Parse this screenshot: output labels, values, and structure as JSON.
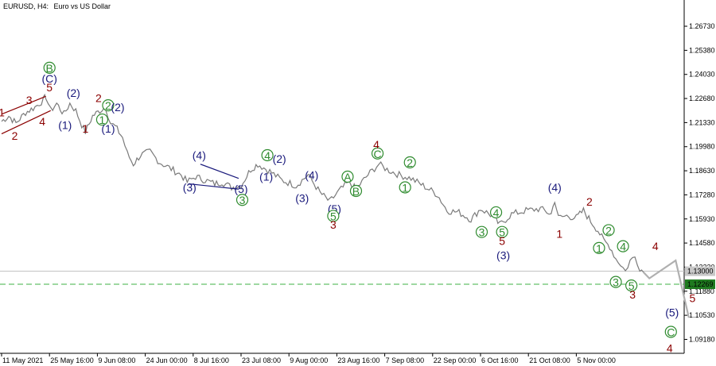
{
  "header": {
    "symbol": "EURUSD, H4:",
    "description": "Euro vs US Dollar"
  },
  "colors": {
    "price": "#7a7a7a",
    "navy": "#1a1a7c",
    "darkred": "#8b0000",
    "green": "#2e8b2e",
    "forecast": "#b0b0b0",
    "dashed": "#3cb043",
    "badge_green": "#1f7a1f",
    "badge_grey": "#c8c8c8"
  },
  "chart_data": {
    "type": "line",
    "symbol": "EURUSD",
    "timeframe": "H4",
    "ylim": [
      1.084,
      1.282
    ],
    "y_ticks": [
      "1.26730",
      "1.25380",
      "1.24030",
      "1.22680",
      "1.21330",
      "1.19980",
      "1.18630",
      "1.17280",
      "1.15930",
      "1.14580",
      "1.13230",
      "1.11880",
      "1.10530",
      "1.09180"
    ],
    "x_ticks": [
      "11 May 2021",
      "25 May 16:00",
      "9 Jun 08:00",
      "24 Jun 00:00",
      "8 Jul 16:00",
      "23 Jul 08:00",
      "9 Aug 00:00",
      "23 Aug 16:00",
      "7 Sep 08:00",
      "22 Sep 00:00",
      "6 Oct 16:00",
      "21 Oct 08:00",
      "5 Nov 00:00"
    ],
    "x_tick_index": [
      0,
      2,
      4,
      6,
      8,
      10,
      12,
      14,
      16,
      18,
      20,
      22,
      24
    ],
    "series": [
      {
        "values": [
          [
            0,
            1.214
          ],
          [
            0.3,
            1.217
          ],
          [
            0.6,
            1.213
          ],
          [
            1.0,
            1.219
          ],
          [
            1.4,
            1.222
          ],
          [
            1.75,
            1.226
          ],
          [
            1.85,
            1.228
          ],
          [
            2.05,
            1.22
          ],
          [
            2.3,
            1.224
          ],
          [
            2.6,
            1.218
          ],
          [
            2.85,
            1.224
          ],
          [
            3.1,
            1.22
          ],
          [
            3.35,
            1.212
          ],
          [
            3.5,
            1.208
          ],
          [
            3.8,
            1.217
          ],
          [
            4.1,
            1.22
          ],
          [
            4.35,
            1.222
          ],
          [
            4.55,
            1.213
          ],
          [
            4.75,
            1.211
          ],
          [
            5.05,
            1.205
          ],
          [
            5.25,
            1.196
          ],
          [
            5.5,
            1.19
          ],
          [
            5.8,
            1.195
          ],
          [
            6.2,
            1.197
          ],
          [
            6.6,
            1.191
          ],
          [
            7.0,
            1.188
          ],
          [
            7.5,
            1.184
          ],
          [
            7.75,
            1.18
          ],
          [
            8.1,
            1.183
          ],
          [
            8.5,
            1.181
          ],
          [
            8.9,
            1.179
          ],
          [
            9.2,
            1.18
          ],
          [
            9.6,
            1.177
          ],
          [
            10.0,
            1.178
          ],
          [
            10.4,
            1.187
          ],
          [
            10.7,
            1.19
          ],
          [
            11.2,
            1.186
          ],
          [
            11.7,
            1.181
          ],
          [
            12.3,
            1.178
          ],
          [
            12.8,
            1.184
          ],
          [
            13.3,
            1.174
          ],
          [
            13.7,
            1.169
          ],
          [
            14.1,
            1.175
          ],
          [
            14.5,
            1.18
          ],
          [
            14.8,
            1.176
          ],
          [
            15.3,
            1.184
          ],
          [
            15.75,
            1.19
          ],
          [
            16.1,
            1.187
          ],
          [
            16.6,
            1.184
          ],
          [
            17.1,
            1.182
          ],
          [
            17.6,
            1.178
          ],
          [
            18.2,
            1.173
          ],
          [
            18.6,
            1.164
          ],
          [
            19.1,
            1.163
          ],
          [
            19.6,
            1.159
          ],
          [
            20.0,
            1.165
          ],
          [
            20.5,
            1.161
          ],
          [
            20.8,
            1.156
          ],
          [
            21.3,
            1.162
          ],
          [
            21.9,
            1.164
          ],
          [
            22.5,
            1.165
          ],
          [
            22.95,
            1.162
          ],
          [
            23.1,
            1.17
          ],
          [
            23.25,
            1.16
          ],
          [
            23.6,
            1.161
          ],
          [
            24.0,
            1.16
          ],
          [
            24.3,
            1.164
          ],
          [
            24.6,
            1.158
          ],
          [
            24.9,
            1.153
          ],
          [
            25.15,
            1.147
          ],
          [
            25.4,
            1.144
          ],
          [
            25.65,
            1.137
          ],
          [
            25.85,
            1.134
          ],
          [
            26.05,
            1.13
          ],
          [
            26.25,
            1.136
          ],
          [
            26.45,
            1.138
          ],
          [
            26.65,
            1.132
          ],
          [
            26.8,
            1.1295
          ]
        ]
      }
    ],
    "forecast": [
      [
        26.8,
        1.1295
      ],
      [
        27.05,
        1.126
      ],
      [
        28.15,
        1.136
      ],
      [
        28.7,
        1.104
      ]
    ],
    "horizontal_lines": [
      {
        "value": 1.13,
        "label": "1.13000",
        "style": "solid"
      },
      {
        "value": 1.12269,
        "label": "1.12269",
        "style": "dashed"
      }
    ],
    "wave_labels": [
      {
        "text": "1",
        "x": 0.0,
        "y": 1.219,
        "color": "darkred",
        "circle": false
      },
      {
        "text": "2",
        "x": 0.55,
        "y": 1.206,
        "color": "darkred",
        "circle": false
      },
      {
        "text": "3",
        "x": 1.15,
        "y": 1.226,
        "color": "darkred",
        "circle": false
      },
      {
        "text": "4",
        "x": 1.7,
        "y": 1.214,
        "color": "darkred",
        "circle": false
      },
      {
        "text": "5",
        "x": 2.0,
        "y": 1.233,
        "color": "darkred",
        "circle": false
      },
      {
        "text": "(C)",
        "x": 2.0,
        "y": 1.238,
        "color": "navy",
        "circle": false
      },
      {
        "text": "B",
        "x": 2.0,
        "y": 1.244,
        "color": "green",
        "circle": true
      },
      {
        "text": "(1)",
        "x": 2.65,
        "y": 1.212,
        "color": "navy",
        "circle": false
      },
      {
        "text": "(2)",
        "x": 3.0,
        "y": 1.23,
        "color": "navy",
        "circle": false
      },
      {
        "text": "1",
        "x": 3.5,
        "y": 1.21,
        "color": "darkred",
        "circle": false
      },
      {
        "text": "2",
        "x": 4.05,
        "y": 1.227,
        "color": "darkred",
        "circle": false
      },
      {
        "text": "1",
        "x": 4.2,
        "y": 1.215,
        "color": "green",
        "circle": true
      },
      {
        "text": "2",
        "x": 4.45,
        "y": 1.223,
        "color": "green",
        "circle": true
      },
      {
        "text": "(2)",
        "x": 4.85,
        "y": 1.222,
        "color": "navy",
        "circle": false
      },
      {
        "text": "(1)",
        "x": 4.45,
        "y": 1.21,
        "color": "navy",
        "circle": false
      },
      {
        "text": "(3)",
        "x": 7.85,
        "y": 1.177,
        "color": "navy",
        "circle": false
      },
      {
        "text": "(4)",
        "x": 8.25,
        "y": 1.195,
        "color": "navy",
        "circle": false
      },
      {
        "text": "(5)",
        "x": 10.0,
        "y": 1.176,
        "color": "navy",
        "circle": false
      },
      {
        "text": "3",
        "x": 10.05,
        "y": 1.17,
        "color": "green",
        "circle": true
      },
      {
        "text": "(1)",
        "x": 11.05,
        "y": 1.183,
        "color": "navy",
        "circle": false
      },
      {
        "text": "4",
        "x": 11.1,
        "y": 1.195,
        "color": "green",
        "circle": true
      },
      {
        "text": "(2)",
        "x": 11.6,
        "y": 1.193,
        "color": "navy",
        "circle": false
      },
      {
        "text": "(3)",
        "x": 12.55,
        "y": 1.171,
        "color": "navy",
        "circle": false
      },
      {
        "text": "(4)",
        "x": 12.95,
        "y": 1.184,
        "color": "navy",
        "circle": false
      },
      {
        "text": "(5)",
        "x": 13.9,
        "y": 1.165,
        "color": "navy",
        "circle": false
      },
      {
        "text": "5",
        "x": 13.85,
        "y": 1.161,
        "color": "green",
        "circle": true
      },
      {
        "text": "3",
        "x": 13.85,
        "y": 1.156,
        "color": "darkred",
        "circle": false
      },
      {
        "text": "A",
        "x": 14.45,
        "y": 1.183,
        "color": "green",
        "circle": true
      },
      {
        "text": "B",
        "x": 14.8,
        "y": 1.175,
        "color": "green",
        "circle": true
      },
      {
        "text": "C",
        "x": 15.7,
        "y": 1.196,
        "color": "green",
        "circle": true
      },
      {
        "text": "4",
        "x": 15.65,
        "y": 1.201,
        "color": "darkred",
        "circle": false
      },
      {
        "text": "1",
        "x": 16.85,
        "y": 1.177,
        "color": "green",
        "circle": true
      },
      {
        "text": "2",
        "x": 17.05,
        "y": 1.191,
        "color": "green",
        "circle": true
      },
      {
        "text": "3",
        "x": 20.05,
        "y": 1.152,
        "color": "green",
        "circle": true
      },
      {
        "text": "4",
        "x": 20.65,
        "y": 1.163,
        "color": "green",
        "circle": true
      },
      {
        "text": "5",
        "x": 20.9,
        "y": 1.152,
        "color": "green",
        "circle": true
      },
      {
        "text": "5",
        "x": 20.9,
        "y": 1.147,
        "color": "darkred",
        "circle": false
      },
      {
        "text": "(3)",
        "x": 20.95,
        "y": 1.139,
        "color": "navy",
        "circle": false
      },
      {
        "text": "(4)",
        "x": 23.1,
        "y": 1.177,
        "color": "navy",
        "circle": false
      },
      {
        "text": "1",
        "x": 23.3,
        "y": 1.151,
        "color": "darkred",
        "circle": false
      },
      {
        "text": "2",
        "x": 24.55,
        "y": 1.169,
        "color": "darkred",
        "circle": false
      },
      {
        "text": "1",
        "x": 24.95,
        "y": 1.143,
        "color": "green",
        "circle": true
      },
      {
        "text": "2",
        "x": 25.35,
        "y": 1.153,
        "color": "green",
        "circle": true
      },
      {
        "text": "4",
        "x": 25.95,
        "y": 1.144,
        "color": "green",
        "circle": true
      },
      {
        "text": "3",
        "x": 25.65,
        "y": 1.124,
        "color": "green",
        "circle": true
      },
      {
        "text": "5",
        "x": 26.3,
        "y": 1.122,
        "color": "green",
        "circle": true
      },
      {
        "text": "3",
        "x": 26.35,
        "y": 1.117,
        "color": "darkred",
        "circle": false
      },
      {
        "text": "4",
        "x": 27.3,
        "y": 1.144,
        "color": "darkred",
        "circle": false
      },
      {
        "text": "5",
        "x": 28.85,
        "y": 1.115,
        "color": "darkred",
        "circle": false
      },
      {
        "text": "(5)",
        "x": 28.0,
        "y": 1.107,
        "color": "navy",
        "circle": false
      },
      {
        "text": "C",
        "x": 27.95,
        "y": 1.096,
        "color": "green",
        "circle": true
      },
      {
        "text": "4",
        "x": 27.9,
        "y": 1.087,
        "color": "darkred",
        "circle": false
      }
    ],
    "trendlines": [
      {
        "color": "darkred",
        "points": [
          [
            0,
            1.218
          ],
          [
            1.85,
            1.228
          ]
        ]
      },
      {
        "color": "darkred",
        "points": [
          [
            0,
            1.207
          ],
          [
            2.05,
            1.22
          ]
        ]
      },
      {
        "color": "navy",
        "points": [
          [
            8.3,
            1.19
          ],
          [
            9.9,
            1.182
          ]
        ]
      },
      {
        "color": "navy",
        "points": [
          [
            7.8,
            1.179
          ],
          [
            9.9,
            1.176
          ]
        ]
      }
    ]
  }
}
